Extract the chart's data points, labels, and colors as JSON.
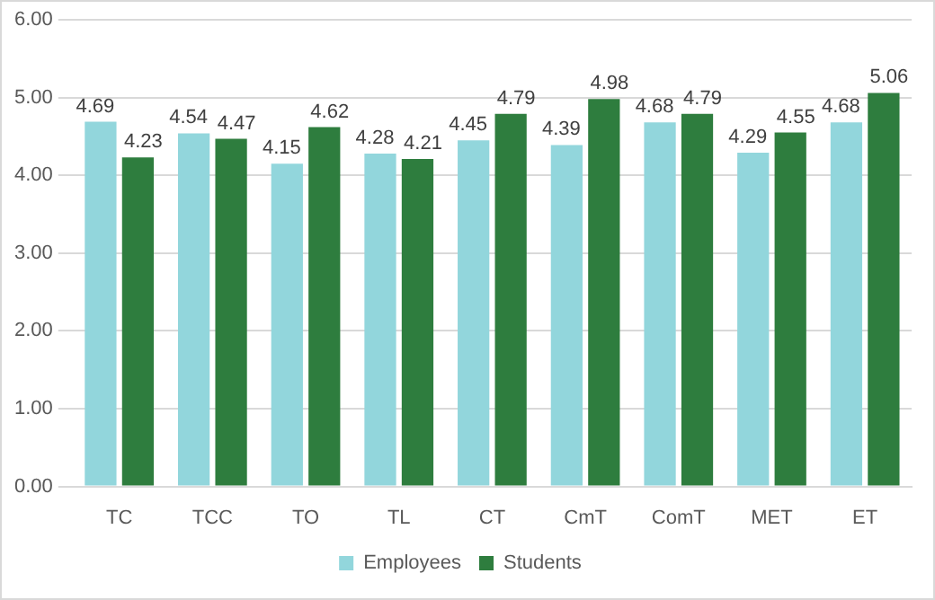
{
  "chart_data": {
    "type": "bar",
    "categories": [
      "TC",
      "TCC",
      "TO",
      "TL",
      "CT",
      "CmT",
      "ComT",
      "MET",
      "ET"
    ],
    "series": [
      {
        "name": "Employees",
        "color": "#92d6dc",
        "values": [
          4.69,
          4.54,
          4.15,
          4.28,
          4.45,
          4.39,
          4.68,
          4.29,
          4.68
        ]
      },
      {
        "name": "Students",
        "color": "#2e7d3e",
        "values": [
          4.23,
          4.47,
          4.62,
          4.21,
          4.79,
          4.98,
          4.79,
          4.55,
          5.06
        ]
      }
    ],
    "ylim": [
      0,
      6
    ],
    "yticks": [
      {
        "value": 0,
        "label": "0.00"
      },
      {
        "value": 1,
        "label": "1.00"
      },
      {
        "value": 2,
        "label": "2.00"
      },
      {
        "value": 3,
        "label": "3.00"
      },
      {
        "value": 4,
        "label": "4.00"
      },
      {
        "value": 5,
        "label": "5.00"
      },
      {
        "value": 6,
        "label": "6.00"
      }
    ],
    "grid": "y",
    "legend": "bottom",
    "data_labels": true
  }
}
